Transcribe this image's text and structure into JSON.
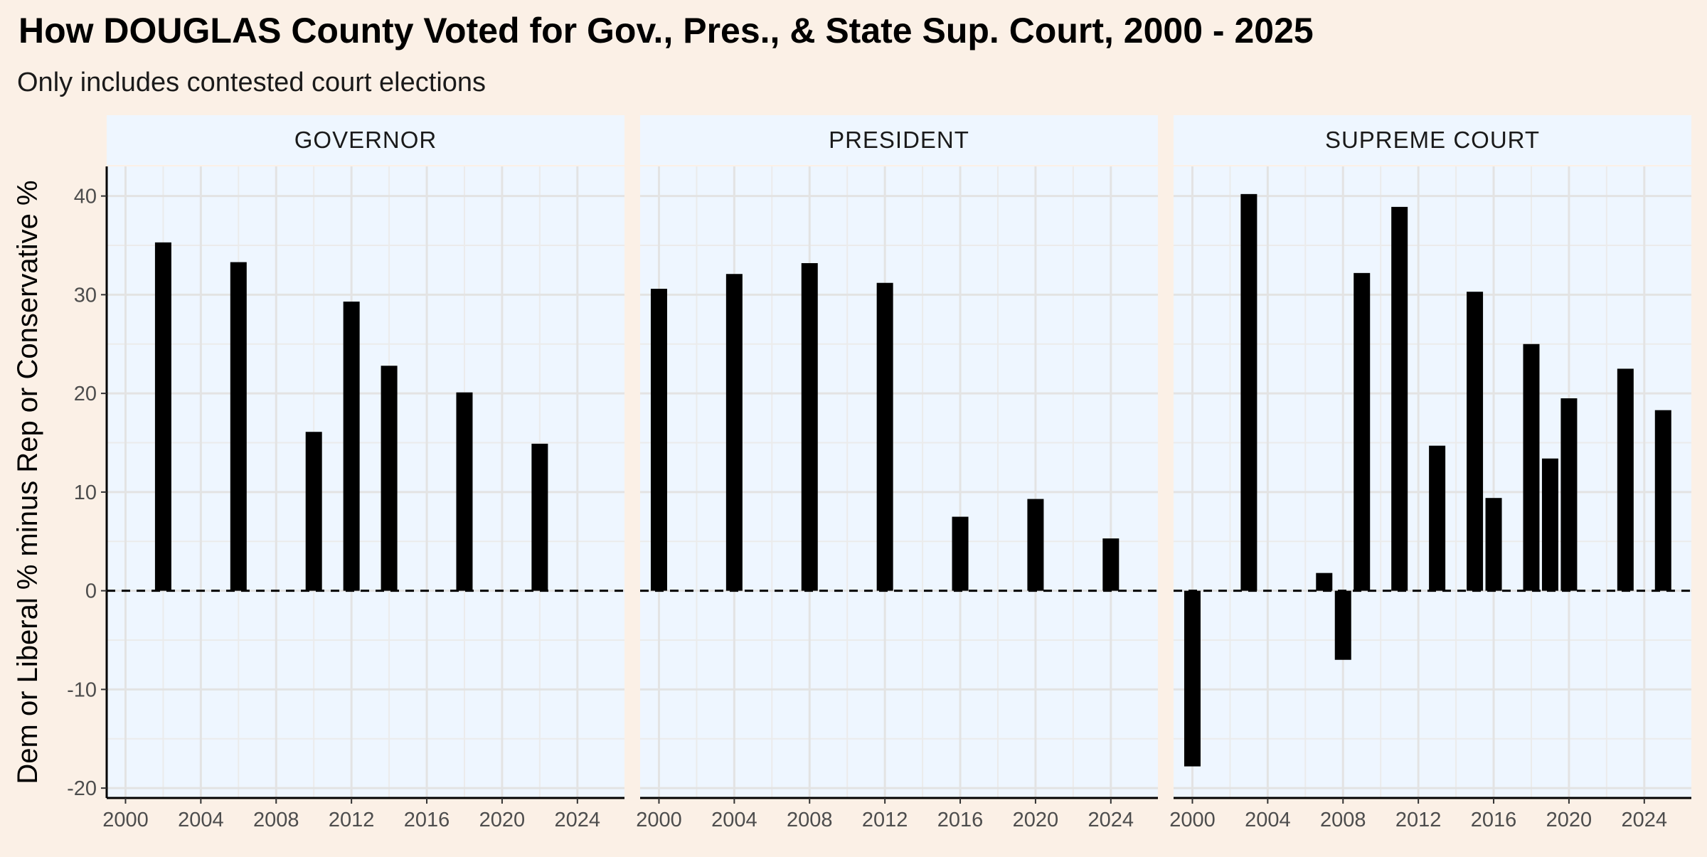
{
  "chart_data": {
    "type": "bar",
    "title": "How DOUGLAS County Voted for Gov., Pres., & State Sup. Court, 2000 - 2025",
    "subtitle": "Only includes contested court elections",
    "ylabel": "Dem or Liberal % minus Rep or Conservative %",
    "xlabel": "",
    "xlim": [
      1999,
      2026.5
    ],
    "ylim": [
      -21,
      43
    ],
    "x_ticks": [
      2000,
      2004,
      2008,
      2012,
      2016,
      2020,
      2024
    ],
    "y_ticks": [
      -20,
      -10,
      0,
      10,
      20,
      30,
      40
    ],
    "reference_line": {
      "y": 0,
      "style": "dashed"
    },
    "grid": true,
    "bar_color": "#000000",
    "panel_background": "#eef6ff",
    "page_background": "#fbf0e6",
    "facets": [
      {
        "name": "GOVERNOR",
        "bars": [
          {
            "x": 2002,
            "y": 35.3
          },
          {
            "x": 2006,
            "y": 33.3
          },
          {
            "x": 2010,
            "y": 16.1
          },
          {
            "x": 2012,
            "y": 29.3
          },
          {
            "x": 2014,
            "y": 22.8
          },
          {
            "x": 2018,
            "y": 20.1
          },
          {
            "x": 2022,
            "y": 14.9
          }
        ]
      },
      {
        "name": "PRESIDENT",
        "bars": [
          {
            "x": 2000,
            "y": 30.6
          },
          {
            "x": 2004,
            "y": 32.1
          },
          {
            "x": 2008,
            "y": 33.2
          },
          {
            "x": 2012,
            "y": 31.2
          },
          {
            "x": 2016,
            "y": 7.5
          },
          {
            "x": 2020,
            "y": 9.3
          },
          {
            "x": 2024,
            "y": 5.3
          }
        ]
      },
      {
        "name": "SUPREME COURT",
        "bars": [
          {
            "x": 2000,
            "y": -17.8
          },
          {
            "x": 2003,
            "y": 40.2
          },
          {
            "x": 2007,
            "y": 1.8
          },
          {
            "x": 2008,
            "y": -7.0
          },
          {
            "x": 2009,
            "y": 32.2
          },
          {
            "x": 2011,
            "y": 38.9
          },
          {
            "x": 2013,
            "y": 14.7
          },
          {
            "x": 2015,
            "y": 30.3
          },
          {
            "x": 2016,
            "y": 9.4
          },
          {
            "x": 2018,
            "y": 25.0
          },
          {
            "x": 2019,
            "y": 13.4
          },
          {
            "x": 2020,
            "y": 19.5
          },
          {
            "x": 2023,
            "y": 22.5
          },
          {
            "x": 2025,
            "y": 18.3
          }
        ]
      }
    ]
  }
}
